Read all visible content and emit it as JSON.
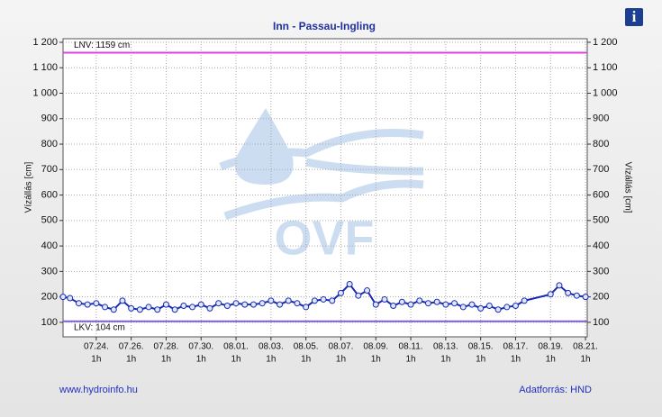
{
  "chart_data": {
    "type": "line",
    "title": "Inn - Passau-Ingling",
    "y_label": "Vízállás [cm]",
    "y2_label": "Vízállás [cm]",
    "x": [
      -1.9,
      -1.5,
      -1,
      -0.5,
      0,
      0.5,
      1,
      1.5,
      2,
      2.5,
      3,
      3.5,
      4,
      4.5,
      5,
      5.5,
      6,
      6.5,
      7,
      7.5,
      8,
      8.5,
      9,
      9.5,
      10,
      10.5,
      11,
      11.5,
      12,
      12.5,
      13,
      13.5,
      14,
      14.5,
      15,
      15.5,
      16,
      16.5,
      17,
      17.5,
      18,
      18.5,
      19,
      19.5,
      20,
      20.5,
      21,
      21.5,
      22,
      22.5,
      23,
      23.5,
      24,
      24.5,
      26,
      26.5,
      27,
      27.5,
      28
    ],
    "series": [
      {
        "name": "Vízállás",
        "color": "#1a2ab0",
        "values": [
          200,
          195,
          175,
          170,
          175,
          160,
          150,
          185,
          155,
          150,
          160,
          150,
          170,
          150,
          165,
          160,
          170,
          155,
          175,
          165,
          175,
          170,
          170,
          175,
          185,
          170,
          185,
          175,
          160,
          185,
          190,
          185,
          215,
          250,
          205,
          225,
          170,
          190,
          165,
          180,
          170,
          185,
          175,
          180,
          170,
          175,
          160,
          170,
          155,
          165,
          150,
          160,
          165,
          185,
          210,
          245,
          215,
          205,
          200
        ]
      }
    ],
    "xlim": [
      -1.9,
      28.1
    ],
    "xticks": [
      {
        "value": 0,
        "label": "07.24."
      },
      {
        "value": 2,
        "label": "07.26."
      },
      {
        "value": 4,
        "label": "07.28."
      },
      {
        "value": 6,
        "label": "07.30."
      },
      {
        "value": 8,
        "label": "08.01."
      },
      {
        "value": 10,
        "label": "08.03."
      },
      {
        "value": 12,
        "label": "08.05."
      },
      {
        "value": 14,
        "label": "08.07."
      },
      {
        "value": 16,
        "label": "08.09."
      },
      {
        "value": 18,
        "label": "08.11."
      },
      {
        "value": 20,
        "label": "08.13."
      },
      {
        "value": 22,
        "label": "08.15."
      },
      {
        "value": 24,
        "label": "08.17."
      },
      {
        "value": 26,
        "label": "08.19."
      },
      {
        "value": 28,
        "label": "08.21."
      }
    ],
    "xtick_hour": "1h",
    "ylim": [
      43,
      1214
    ],
    "yticks": [
      100,
      200,
      300,
      400,
      500,
      600,
      700,
      800,
      900,
      {
        "value": 1000,
        "label": "1 000"
      },
      {
        "value": 1100,
        "label": "1 100"
      },
      {
        "value": 1200,
        "label": "1 200"
      }
    ],
    "grid": true,
    "reference_lines": [
      {
        "label": "LNV: 1159 cm",
        "value": 1159,
        "color": "#e040e0"
      },
      {
        "label": "LKV: 104 cm",
        "value": 104,
        "color": "#8060d0"
      }
    ],
    "watermark": "OVF"
  },
  "footer": {
    "left": "www.hydroinfo.hu",
    "right": "Adatforrás: HND"
  },
  "info_button": "i"
}
